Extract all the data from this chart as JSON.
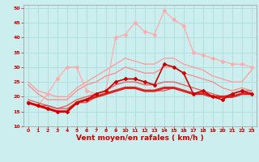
{
  "xlabel": "Vent moyen/en rafales ( km/h )",
  "bg_color": "#cceeee",
  "grid_color": "#aadddd",
  "xlim": [
    -0.5,
    23.5
  ],
  "ylim": [
    10,
    51
  ],
  "yticks": [
    10,
    15,
    20,
    25,
    30,
    35,
    40,
    45,
    50
  ],
  "xticks": [
    0,
    1,
    2,
    3,
    4,
    5,
    6,
    7,
    8,
    9,
    10,
    11,
    12,
    13,
    14,
    15,
    16,
    17,
    18,
    19,
    20,
    21,
    22,
    23
  ],
  "series": [
    {
      "x": [
        0,
        1,
        2,
        3,
        4,
        5,
        6,
        7,
        8,
        9,
        10,
        11,
        12,
        13,
        14,
        15,
        16,
        17,
        18,
        19,
        20,
        21,
        22,
        23
      ],
      "y": [
        18,
        17,
        21,
        26,
        30,
        30,
        22,
        21,
        22,
        40,
        41,
        45,
        42,
        41,
        49,
        46,
        44,
        35,
        34,
        33,
        32,
        31,
        31,
        30
      ],
      "color": "#ffaaaa",
      "lw": 0.9,
      "marker": "D",
      "ms": 2.0,
      "zorder": 3
    },
    {
      "x": [
        0,
        1,
        2,
        3,
        4,
        5,
        6,
        7,
        8,
        9,
        10,
        11,
        12,
        13,
        14,
        15,
        16,
        17,
        18,
        19,
        20,
        21,
        22,
        23
      ],
      "y": [
        25,
        22,
        21,
        20,
        20,
        23,
        25,
        27,
        29,
        31,
        33,
        32,
        31,
        31,
        33,
        33,
        31,
        30,
        29,
        27,
        26,
        25,
        25,
        29
      ],
      "color": "#ff9999",
      "lw": 0.9,
      "marker": "None",
      "ms": 0,
      "zorder": 2
    },
    {
      "x": [
        0,
        1,
        2,
        3,
        4,
        5,
        6,
        7,
        8,
        9,
        10,
        11,
        12,
        13,
        14,
        15,
        16,
        17,
        18,
        19,
        20,
        21,
        22,
        23
      ],
      "y": [
        24,
        21,
        19,
        19,
        19,
        22,
        24,
        25,
        27,
        28,
        30,
        29,
        28,
        28,
        30,
        30,
        28,
        27,
        26,
        25,
        23,
        22,
        23,
        22
      ],
      "color": "#ff8888",
      "lw": 0.9,
      "marker": "None",
      "ms": 0,
      "zorder": 2
    },
    {
      "x": [
        0,
        1,
        2,
        3,
        4,
        5,
        6,
        7,
        8,
        9,
        10,
        11,
        12,
        13,
        14,
        15,
        16,
        17,
        18,
        19,
        20,
        21,
        22,
        23
      ],
      "y": [
        19,
        18,
        17,
        16,
        17,
        19,
        20,
        21,
        22,
        24,
        25,
        25,
        24,
        24,
        25,
        25,
        24,
        23,
        22,
        21,
        20,
        21,
        22,
        22
      ],
      "color": "#ee5555",
      "lw": 0.9,
      "marker": "None",
      "ms": 0,
      "zorder": 3
    },
    {
      "x": [
        0,
        1,
        2,
        3,
        4,
        5,
        6,
        7,
        8,
        9,
        10,
        11,
        12,
        13,
        14,
        15,
        16,
        17,
        18,
        19,
        20,
        21,
        22,
        23
      ],
      "y": [
        18,
        17,
        17,
        16,
        16,
        18,
        18,
        20,
        21,
        22,
        23,
        23,
        22,
        22,
        22,
        23,
        22,
        21,
        21,
        20,
        20,
        20,
        21,
        21
      ],
      "color": "#ee4444",
      "lw": 0.9,
      "marker": "None",
      "ms": 0,
      "zorder": 3
    },
    {
      "x": [
        0,
        1,
        2,
        3,
        4,
        5,
        6,
        7,
        8,
        9,
        10,
        11,
        12,
        13,
        14,
        15,
        16,
        17,
        18,
        19,
        20,
        21,
        22,
        23
      ],
      "y": [
        18,
        17,
        16,
        15,
        15,
        18,
        19,
        20,
        21,
        22,
        23,
        23,
        22,
        22,
        23,
        23,
        22,
        21,
        21,
        20,
        20,
        20,
        21,
        21
      ],
      "color": "#dd2222",
      "lw": 2.2,
      "marker": "None",
      "ms": 0,
      "zorder": 4
    },
    {
      "x": [
        0,
        1,
        2,
        3,
        4,
        5,
        6,
        7,
        8,
        9,
        10,
        11,
        12,
        13,
        14,
        15,
        16,
        17,
        18,
        19,
        20,
        21,
        22,
        23
      ],
      "y": [
        18,
        17,
        16,
        15,
        15,
        18,
        19,
        21,
        22,
        25,
        26,
        26,
        25,
        24,
        31,
        30,
        28,
        21,
        22,
        20,
        19,
        21,
        22,
        21
      ],
      "color": "#cc0000",
      "lw": 1.2,
      "marker": "D",
      "ms": 2.0,
      "zorder": 5
    }
  ],
  "tick_color": "#cc0000",
  "label_color": "#cc0000",
  "axis_color": "#999999",
  "xlabel_fontsize": 6.5,
  "tick_fontsize": 4.5
}
